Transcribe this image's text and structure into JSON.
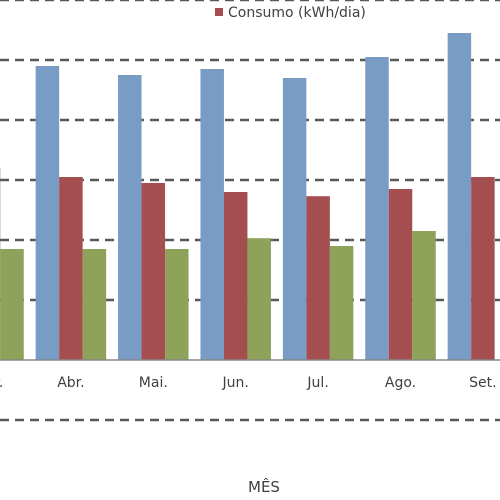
{
  "chart_data": {
    "type": "bar",
    "categories": [
      "Mar.",
      "Abr.",
      "Mai.",
      "Jun.",
      "Jul.",
      "Ago.",
      "Set."
    ],
    "series": [
      {
        "color": "#789cc4",
        "values": [
          null,
          49,
          47.5,
          48.5,
          47,
          50.5,
          54.5
        ]
      },
      {
        "name": "Consumo (kWh/dia)",
        "color": "#a54e50",
        "values": [
          32,
          30.5,
          29.5,
          28,
          27.3,
          28.5,
          30.5
        ]
      },
      {
        "color": "#8ea25a",
        "values": [
          18.5,
          18.5,
          18.5,
          20.3,
          19,
          21.5,
          null
        ]
      }
    ],
    "xlabel": "MÊS",
    "ylim": [
      -10,
      60
    ],
    "grid": true,
    "legend": "top-center"
  }
}
